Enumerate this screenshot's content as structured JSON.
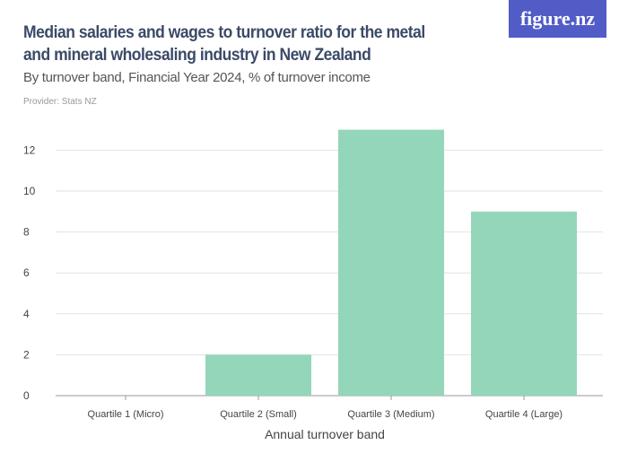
{
  "header": {
    "title": "Median salaries and wages to turnover ratio for the metal and mineral wholesaling industry in New Zealand",
    "subtitle": "By turnover band, Financial Year 2024, % of turnover income",
    "provider": "Provider: Stats NZ",
    "logo": "figure.nz"
  },
  "colors": {
    "bar": "#94d6b9",
    "logo_bg": "#515cc7",
    "title": "#3b4a68"
  },
  "chart_data": {
    "type": "bar",
    "title": "Median salaries and wages to turnover ratio for the metal and mineral wholesaling industry in New Zealand",
    "subtitle": "By turnover band, Financial Year 2024, % of turnover income",
    "xlabel": "Annual turnover band",
    "ylabel": "",
    "categories": [
      "Quartile 1 (Micro)",
      "Quartile 2 (Small)",
      "Quartile 3 (Medium)",
      "Quartile 4 (Large)"
    ],
    "values": [
      0,
      2,
      13,
      9
    ],
    "ylim": [
      0,
      13
    ],
    "yticks": [
      0,
      2,
      4,
      6,
      8,
      10,
      12
    ],
    "grid": true
  }
}
